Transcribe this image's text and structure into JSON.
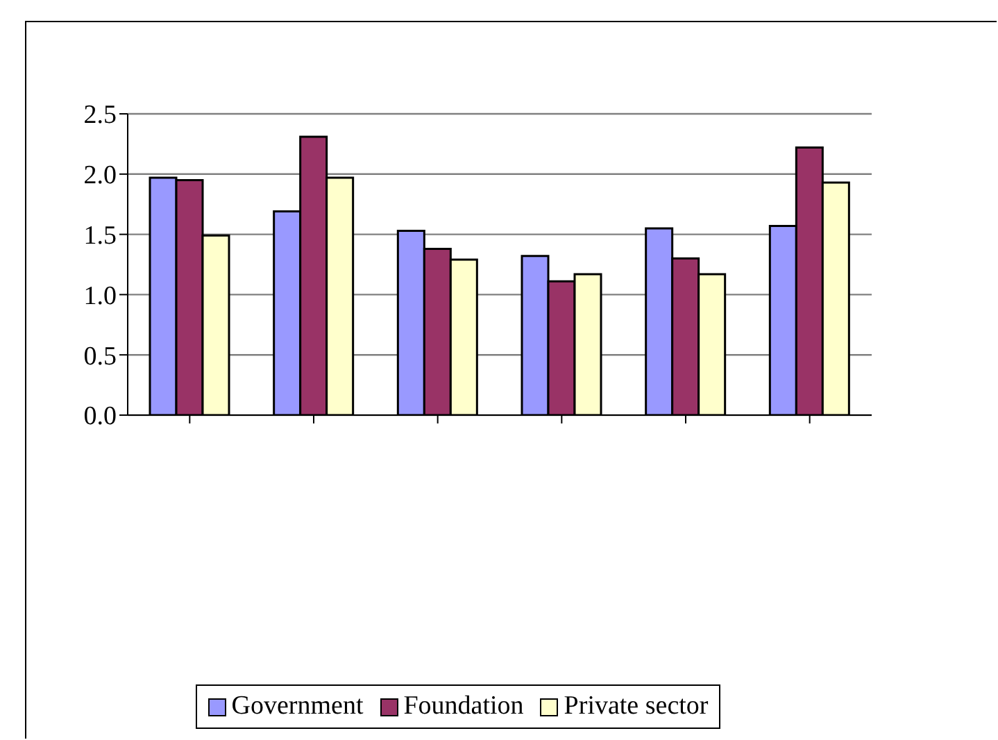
{
  "chart_data": {
    "type": "bar",
    "categories": [
      null,
      null,
      null,
      null,
      null,
      null
    ],
    "series": [
      {
        "name": "Government",
        "color": "#9999ff",
        "values": [
          1.97,
          1.69,
          1.53,
          1.32,
          1.55,
          1.57
        ]
      },
      {
        "name": "Foundation",
        "color": "#993366",
        "values": [
          1.95,
          2.31,
          1.38,
          1.11,
          1.3,
          2.22
        ]
      },
      {
        "name": "Private sector",
        "color": "#ffffcc",
        "values": [
          1.49,
          1.97,
          1.29,
          1.17,
          1.17,
          1.93
        ]
      }
    ],
    "ylim": [
      0,
      2.5
    ],
    "yticks": [
      {
        "value": 0,
        "label": "0.0"
      },
      {
        "value": 0.5,
        "label": "0.5"
      },
      {
        "value": 1,
        "label": "1.0"
      },
      {
        "value": 1.5,
        "label": "1.5"
      },
      {
        "value": 2,
        "label": "2.0"
      },
      {
        "value": 2.5,
        "label": "2.5"
      }
    ],
    "grid": "y",
    "legend": "bottom"
  }
}
